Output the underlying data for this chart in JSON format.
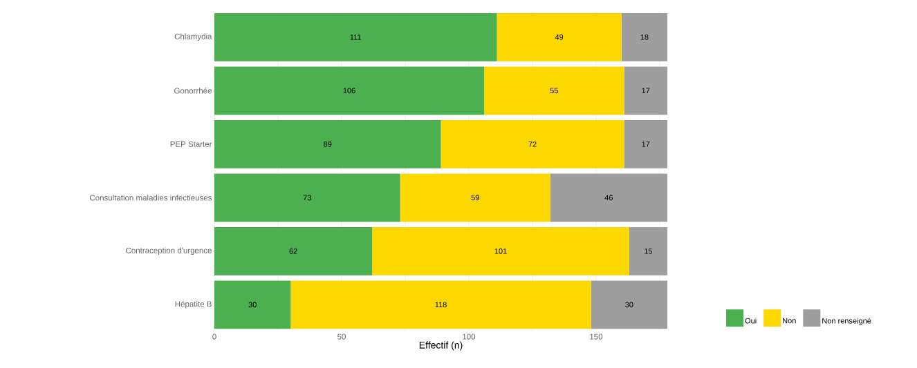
{
  "chart_data": {
    "type": "bar",
    "orientation": "horizontal",
    "stacked": true,
    "xlabel": "Effectif (n)",
    "categories": [
      "Chlamydia",
      "Gonorrhée",
      "PEP Starter",
      "Consultation maladies infectieuses",
      "Contraception d'urgence",
      "Hépatite B"
    ],
    "series": [
      {
        "name": "Oui",
        "color": "#4caf50",
        "values": [
          111,
          106,
          89,
          73,
          62,
          30
        ]
      },
      {
        "name": "Non",
        "color": "#fcd700",
        "values": [
          49,
          55,
          72,
          59,
          101,
          118
        ]
      },
      {
        "name": "Non renseigné",
        "color": "#9e9e9e",
        "values": [
          18,
          17,
          17,
          46,
          15,
          30
        ]
      }
    ],
    "xlim": [
      0,
      178
    ],
    "xticks": [
      0,
      {
        "value": 25,
        "label": null
      },
      50,
      {
        "value": 75,
        "label": null
      },
      100,
      {
        "value": 125,
        "label": null
      },
      150,
      {
        "value": 175,
        "label": null
      }
    ],
    "grid": "x",
    "legend": "bottom right",
    "data_labels": true
  }
}
